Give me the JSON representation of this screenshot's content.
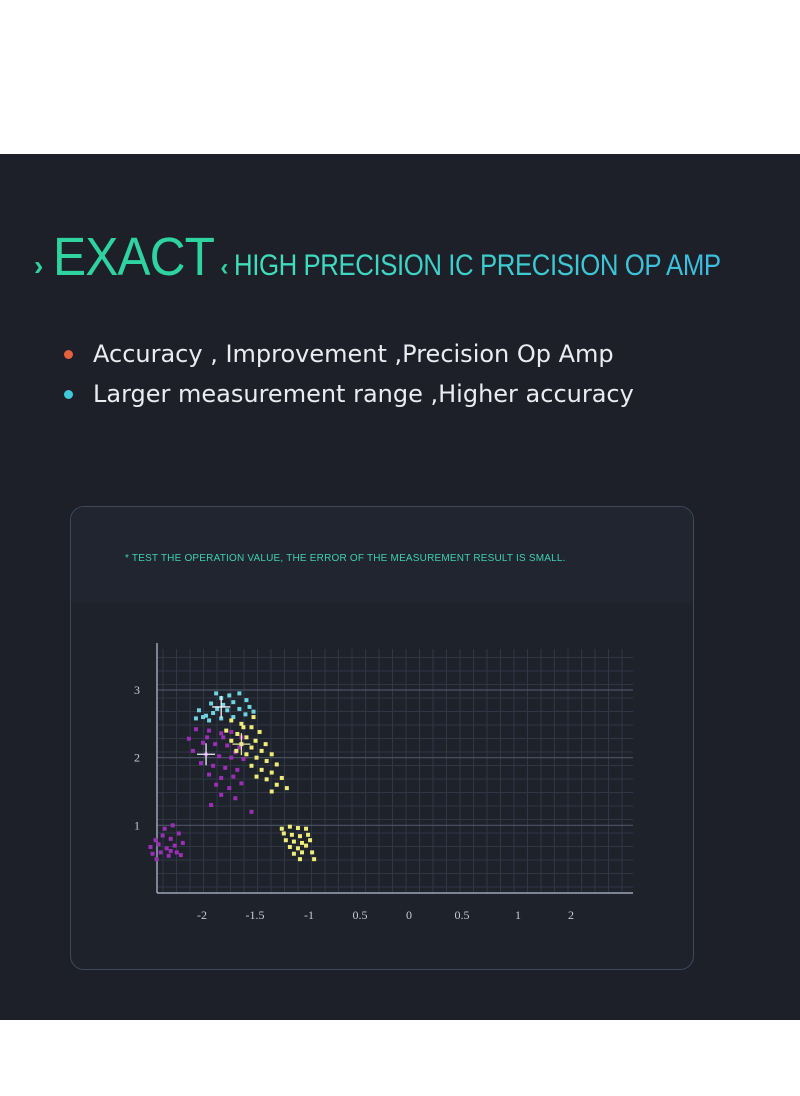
{
  "header": {
    "brand": "EXACT",
    "subtitle": "HIGH PRECISION IC PRECISION OP AMP"
  },
  "bullets": [
    {
      "text": "Accuracy , Improvement ,Precision Op Amp",
      "color": "#e5603d"
    },
    {
      "text": "Larger measurement range ,Higher accuracy",
      "color": "#3fc8d8"
    }
  ],
  "card": {
    "note": "* TEST THE OPERATION VALUE, THE ERROR OF THE MEASUREMENT RESULT IS SMALL."
  },
  "chart_data": {
    "type": "scatter",
    "grid": true,
    "ylim": [
      0,
      3.4
    ],
    "x_ticks": [
      "-2",
      "-1.5",
      "-1",
      "0.5",
      "0",
      "0.5",
      "1",
      "2"
    ],
    "y_ticks": [
      {
        "label": "1",
        "value": 1
      },
      {
        "label": "2",
        "value": 2
      },
      {
        "label": "3",
        "value": 3
      }
    ],
    "series": [
      {
        "color": "#6fd3e0",
        "points": [
          [
            -0.85,
            2.95
          ],
          [
            -0.8,
            2.88
          ],
          [
            -0.72,
            2.92
          ],
          [
            -0.62,
            2.95
          ],
          [
            -0.9,
            2.8
          ],
          [
            -0.78,
            2.78
          ],
          [
            -0.68,
            2.82
          ],
          [
            -0.55,
            2.85
          ],
          [
            -1.02,
            2.7
          ],
          [
            -0.95,
            2.62
          ],
          [
            -0.88,
            2.66
          ],
          [
            -0.74,
            2.7
          ],
          [
            -0.62,
            2.72
          ],
          [
            -0.52,
            2.75
          ],
          [
            -1.05,
            2.58
          ],
          [
            -0.92,
            2.55
          ],
          [
            -0.8,
            2.58
          ],
          [
            -0.68,
            2.6
          ],
          [
            -0.56,
            2.64
          ],
          [
            -0.48,
            2.68
          ],
          [
            -0.84,
            2.72
          ],
          [
            -0.98,
            2.6
          ]
        ]
      },
      {
        "color": "#9a2fb6",
        "points": [
          [
            -1.05,
            2.42
          ],
          [
            -0.92,
            2.4
          ],
          [
            -0.8,
            2.36
          ],
          [
            -0.7,
            2.38
          ],
          [
            -0.6,
            2.3
          ],
          [
            -1.12,
            2.28
          ],
          [
            -0.98,
            2.22
          ],
          [
            -0.86,
            2.2
          ],
          [
            -0.74,
            2.18
          ],
          [
            -0.62,
            2.15
          ],
          [
            -1.08,
            2.1
          ],
          [
            -0.95,
            2.05
          ],
          [
            -0.82,
            2.02
          ],
          [
            -0.7,
            2.0
          ],
          [
            -0.58,
            1.98
          ],
          [
            -1.0,
            1.92
          ],
          [
            -0.88,
            1.88
          ],
          [
            -0.76,
            1.85
          ],
          [
            -0.64,
            1.82
          ],
          [
            -0.92,
            1.75
          ],
          [
            -0.8,
            1.7
          ],
          [
            -0.68,
            1.72
          ],
          [
            -0.85,
            1.6
          ],
          [
            -0.72,
            1.55
          ],
          [
            -0.6,
            1.62
          ],
          [
            -0.8,
            1.45
          ],
          [
            -0.66,
            1.4
          ],
          [
            -0.9,
            1.3
          ],
          [
            -0.5,
            1.2
          ],
          [
            -0.78,
            2.3
          ],
          [
            -0.66,
            2.08
          ],
          [
            -0.94,
            2.3
          ],
          [
            -1.45,
            0.78
          ],
          [
            -1.38,
            0.85
          ],
          [
            -1.3,
            0.8
          ],
          [
            -1.22,
            0.88
          ],
          [
            -1.5,
            0.68
          ],
          [
            -1.42,
            0.72
          ],
          [
            -1.34,
            0.66
          ],
          [
            -1.26,
            0.7
          ],
          [
            -1.18,
            0.74
          ],
          [
            -1.48,
            0.58
          ],
          [
            -1.4,
            0.6
          ],
          [
            -1.32,
            0.55
          ],
          [
            -1.24,
            0.6
          ],
          [
            -1.36,
            0.95
          ],
          [
            -1.28,
            1.0
          ],
          [
            -1.44,
            0.5
          ],
          [
            -1.2,
            0.56
          ],
          [
            -1.3,
            0.62
          ]
        ]
      },
      {
        "color": "#f0ec7a",
        "points": [
          [
            -0.7,
            2.55
          ],
          [
            -0.6,
            2.5
          ],
          [
            -0.5,
            2.45
          ],
          [
            -0.42,
            2.38
          ],
          [
            -0.75,
            2.4
          ],
          [
            -0.64,
            2.35
          ],
          [
            -0.55,
            2.3
          ],
          [
            -0.46,
            2.25
          ],
          [
            -0.36,
            2.2
          ],
          [
            -0.7,
            2.25
          ],
          [
            -0.6,
            2.2
          ],
          [
            -0.5,
            2.15
          ],
          [
            -0.4,
            2.1
          ],
          [
            -0.3,
            2.05
          ],
          [
            -0.65,
            2.1
          ],
          [
            -0.55,
            2.05
          ],
          [
            -0.45,
            2.0
          ],
          [
            -0.35,
            1.95
          ],
          [
            -0.25,
            1.9
          ],
          [
            -0.5,
            1.88
          ],
          [
            -0.4,
            1.82
          ],
          [
            -0.3,
            1.78
          ],
          [
            -0.2,
            1.7
          ],
          [
            -0.45,
            1.72
          ],
          [
            -0.35,
            1.68
          ],
          [
            -0.25,
            1.6
          ],
          [
            -0.15,
            1.55
          ],
          [
            -0.3,
            1.5
          ],
          [
            -0.58,
            2.45
          ],
          [
            -0.48,
            2.6
          ],
          [
            -0.2,
            0.95
          ],
          [
            -0.12,
            0.98
          ],
          [
            -0.04,
            0.96
          ],
          [
            0.04,
            0.95
          ],
          [
            -0.18,
            0.88
          ],
          [
            -0.1,
            0.86
          ],
          [
            -0.02,
            0.84
          ],
          [
            0.06,
            0.86
          ],
          [
            -0.16,
            0.78
          ],
          [
            -0.08,
            0.76
          ],
          [
            0.0,
            0.74
          ],
          [
            0.08,
            0.78
          ],
          [
            -0.12,
            0.68
          ],
          [
            -0.04,
            0.66
          ],
          [
            0.04,
            0.7
          ],
          [
            -0.08,
            0.58
          ],
          [
            0.0,
            0.6
          ],
          [
            0.1,
            0.6
          ],
          [
            -0.02,
            0.5
          ],
          [
            0.12,
            0.5
          ]
        ]
      }
    ],
    "markers": [
      {
        "x": -0.8,
        "y": 2.75,
        "color": "#eef2f7"
      },
      {
        "x": -0.95,
        "y": 2.05,
        "color": "#eef2f7"
      },
      {
        "x": -0.6,
        "y": 2.2,
        "color": "#e8e4a0"
      }
    ]
  }
}
